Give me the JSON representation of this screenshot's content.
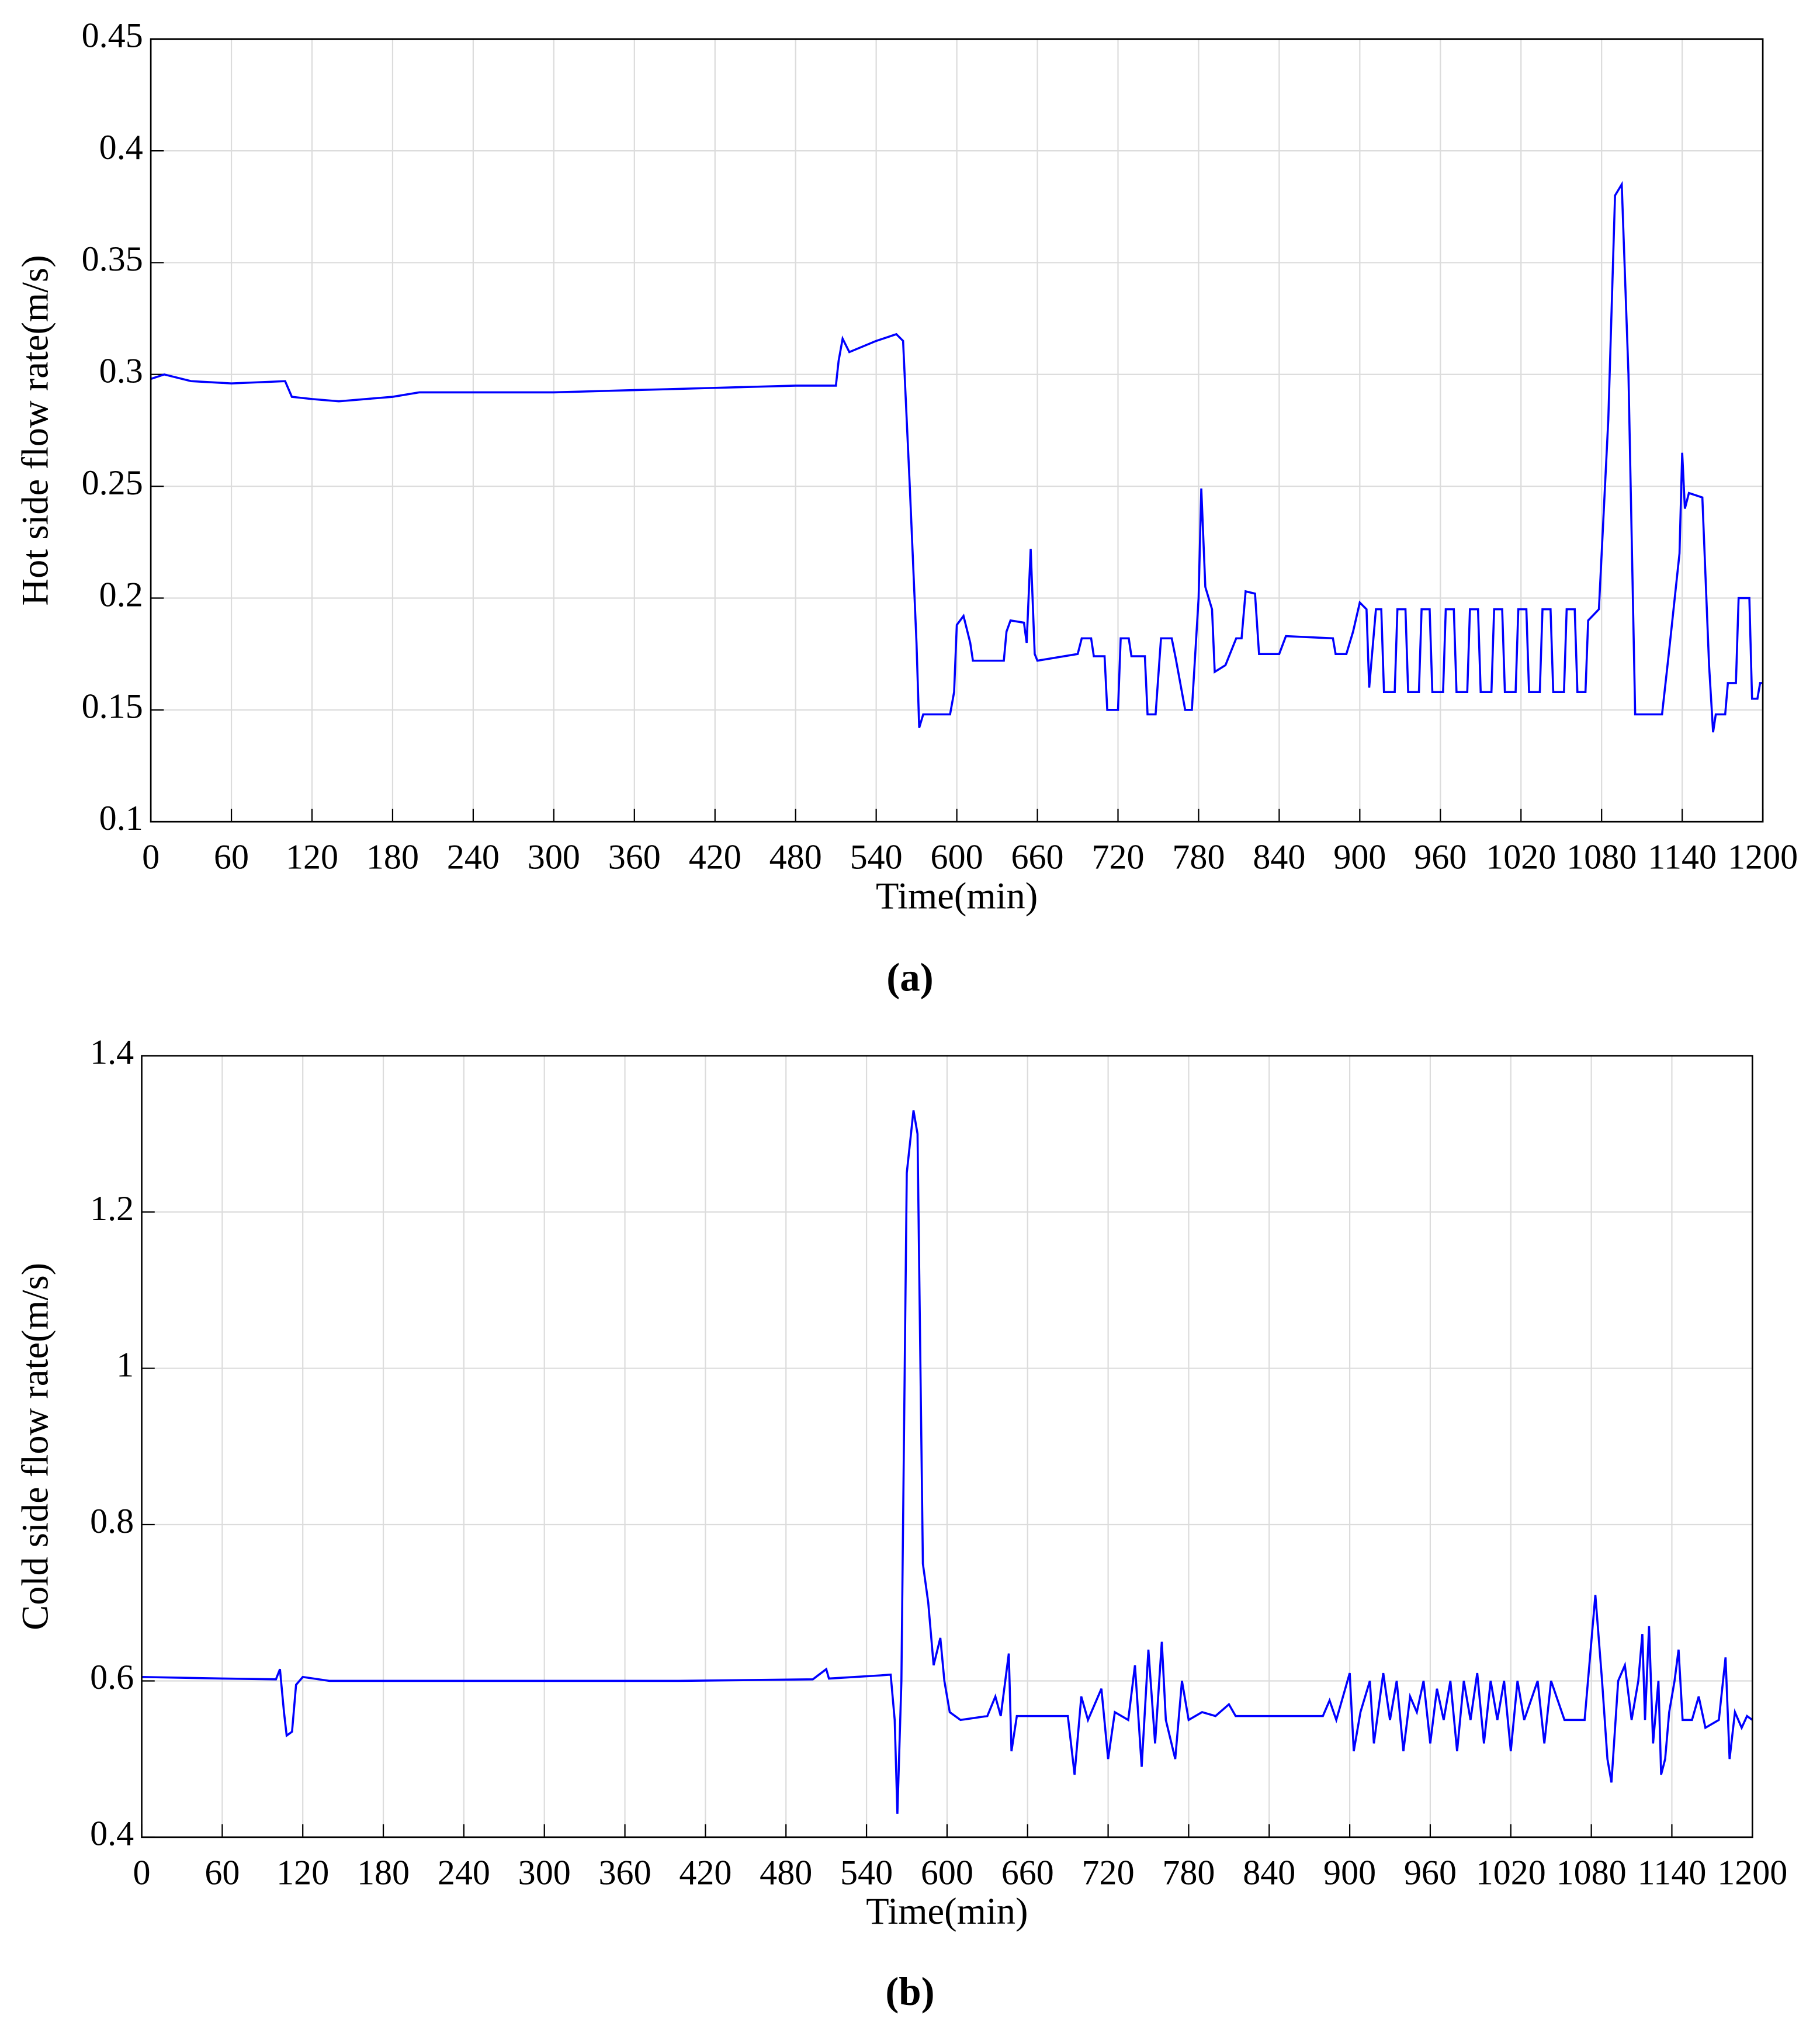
{
  "chart_data": [
    {
      "type": "line",
      "xlabel": "Time(min)",
      "ylabel": "Hot side flow rate(m/s)",
      "caption": "(a)",
      "color": "#0000ff",
      "grid": true,
      "xlim": [
        0,
        1200
      ],
      "ylim": [
        0.1,
        0.45
      ],
      "xticks": [
        0,
        60,
        120,
        180,
        240,
        300,
        360,
        420,
        480,
        540,
        600,
        660,
        720,
        780,
        840,
        900,
        960,
        1020,
        1080,
        1140,
        1200
      ],
      "yticks": [
        0.1,
        0.15,
        0.2,
        0.25,
        0.3,
        0.35,
        0.4,
        0.45
      ],
      "x": [
        0,
        10,
        30,
        60,
        100,
        105,
        120,
        140,
        180,
        200,
        240,
        300,
        360,
        420,
        480,
        510,
        512,
        515,
        520,
        540,
        555,
        560,
        565,
        570,
        572,
        575,
        595,
        598,
        600,
        605,
        610,
        612,
        635,
        637,
        640,
        650,
        652,
        655,
        658,
        660,
        690,
        693,
        700,
        702,
        710,
        712,
        720,
        722,
        728,
        730,
        740,
        742,
        748,
        752,
        760,
        763,
        770,
        775,
        780,
        782,
        785,
        790,
        792,
        800,
        808,
        812,
        815,
        822,
        825,
        840,
        845,
        880,
        882,
        890,
        895,
        900,
        905,
        907,
        912,
        916,
        918,
        926,
        928,
        934,
        936,
        944,
        946,
        952,
        954,
        962,
        964,
        970,
        972,
        980,
        982,
        988,
        990,
        998,
        1000,
        1006,
        1008,
        1016,
        1018,
        1024,
        1026,
        1034,
        1036,
        1042,
        1044,
        1052,
        1054,
        1060,
        1062,
        1068,
        1070,
        1078,
        1085,
        1090,
        1095,
        1100,
        1105,
        1125,
        1130,
        1138,
        1140,
        1142,
        1145,
        1155,
        1160,
        1163,
        1165,
        1172,
        1174,
        1180,
        1182,
        1190,
        1192,
        1196,
        1198,
        1200
      ],
      "values": [
        0.298,
        0.3,
        0.297,
        0.296,
        0.297,
        0.29,
        0.289,
        0.288,
        0.29,
        0.292,
        0.292,
        0.292,
        0.293,
        0.294,
        0.295,
        0.295,
        0.306,
        0.316,
        0.31,
        0.315,
        0.318,
        0.315,
        0.25,
        0.18,
        0.142,
        0.148,
        0.148,
        0.158,
        0.188,
        0.192,
        0.18,
        0.172,
        0.172,
        0.185,
        0.19,
        0.189,
        0.18,
        0.222,
        0.175,
        0.172,
        0.175,
        0.182,
        0.182,
        0.174,
        0.174,
        0.15,
        0.15,
        0.182,
        0.182,
        0.174,
        0.174,
        0.148,
        0.148,
        0.182,
        0.182,
        0.173,
        0.15,
        0.15,
        0.2,
        0.249,
        0.205,
        0.195,
        0.167,
        0.17,
        0.182,
        0.182,
        0.203,
        0.202,
        0.175,
        0.175,
        0.183,
        0.182,
        0.175,
        0.175,
        0.185,
        0.198,
        0.195,
        0.16,
        0.195,
        0.195,
        0.158,
        0.158,
        0.195,
        0.195,
        0.158,
        0.158,
        0.195,
        0.195,
        0.158,
        0.158,
        0.195,
        0.195,
        0.158,
        0.158,
        0.195,
        0.195,
        0.158,
        0.158,
        0.195,
        0.195,
        0.158,
        0.158,
        0.195,
        0.195,
        0.158,
        0.158,
        0.195,
        0.195,
        0.158,
        0.158,
        0.195,
        0.195,
        0.158,
        0.158,
        0.19,
        0.195,
        0.28,
        0.38,
        0.385,
        0.3,
        0.148,
        0.148,
        0.175,
        0.22,
        0.265,
        0.24,
        0.247,
        0.245,
        0.17,
        0.14,
        0.148,
        0.148,
        0.162,
        0.162,
        0.2,
        0.2,
        0.155,
        0.155,
        0.162,
        0.162
      ]
    },
    {
      "type": "line",
      "xlabel": "Time(min)",
      "ylabel": "Cold side flow rate(m/s)",
      "caption": "(b)",
      "color": "#0000ff",
      "grid": true,
      "xlim": [
        0,
        1200
      ],
      "ylim": [
        0.4,
        1.4
      ],
      "xticks": [
        0,
        60,
        120,
        180,
        240,
        300,
        360,
        420,
        480,
        540,
        600,
        660,
        720,
        780,
        840,
        900,
        960,
        1020,
        1080,
        1140,
        1200
      ],
      "yticks": [
        0.4,
        0.6,
        0.8,
        1,
        1.2,
        1.4
      ],
      "x": [
        0,
        60,
        100,
        103,
        106,
        108,
        112,
        115,
        120,
        140,
        200,
        300,
        400,
        500,
        510,
        512,
        550,
        558,
        561,
        563,
        566,
        570,
        575,
        578,
        582,
        586,
        590,
        595,
        598,
        602,
        610,
        630,
        636,
        640,
        646,
        648,
        652,
        690,
        695,
        700,
        705,
        715,
        720,
        725,
        735,
        740,
        745,
        750,
        755,
        760,
        763,
        770,
        775,
        780,
        790,
        800,
        810,
        815,
        860,
        880,
        885,
        890,
        900,
        903,
        908,
        915,
        918,
        925,
        930,
        935,
        940,
        945,
        950,
        955,
        960,
        965,
        970,
        975,
        980,
        985,
        990,
        995,
        1000,
        1005,
        1010,
        1015,
        1020,
        1025,
        1030,
        1040,
        1045,
        1050,
        1060,
        1075,
        1080,
        1083,
        1088,
        1092,
        1095,
        1100,
        1105,
        1110,
        1115,
        1118,
        1120,
        1123,
        1126,
        1130,
        1132,
        1135,
        1138,
        1142,
        1145,
        1148,
        1155,
        1160,
        1165,
        1175,
        1180,
        1183,
        1187,
        1192,
        1196,
        1200
      ],
      "values": [
        0.605,
        0.603,
        0.602,
        0.615,
        0.56,
        0.53,
        0.535,
        0.595,
        0.605,
        0.6,
        0.6,
        0.6,
        0.6,
        0.602,
        0.615,
        0.603,
        0.607,
        0.608,
        0.55,
        0.43,
        0.6,
        1.25,
        1.33,
        1.3,
        0.75,
        0.7,
        0.62,
        0.655,
        0.6,
        0.56,
        0.55,
        0.555,
        0.58,
        0.555,
        0.635,
        0.51,
        0.555,
        0.555,
        0.48,
        0.58,
        0.55,
        0.59,
        0.5,
        0.56,
        0.55,
        0.62,
        0.49,
        0.64,
        0.52,
        0.65,
        0.55,
        0.5,
        0.6,
        0.55,
        0.56,
        0.555,
        0.57,
        0.555,
        0.555,
        0.555,
        0.575,
        0.55,
        0.61,
        0.51,
        0.56,
        0.6,
        0.52,
        0.61,
        0.55,
        0.6,
        0.51,
        0.58,
        0.56,
        0.6,
        0.52,
        0.59,
        0.55,
        0.6,
        0.51,
        0.6,
        0.55,
        0.61,
        0.52,
        0.6,
        0.55,
        0.6,
        0.51,
        0.6,
        0.55,
        0.6,
        0.52,
        0.6,
        0.55,
        0.55,
        0.65,
        0.71,
        0.6,
        0.5,
        0.47,
        0.6,
        0.62,
        0.55,
        0.6,
        0.66,
        0.55,
        0.67,
        0.52,
        0.6,
        0.48,
        0.5,
        0.56,
        0.6,
        0.64,
        0.55,
        0.55,
        0.58,
        0.54,
        0.55,
        0.63,
        0.5,
        0.56,
        0.54,
        0.555,
        0.55
      ]
    }
  ]
}
